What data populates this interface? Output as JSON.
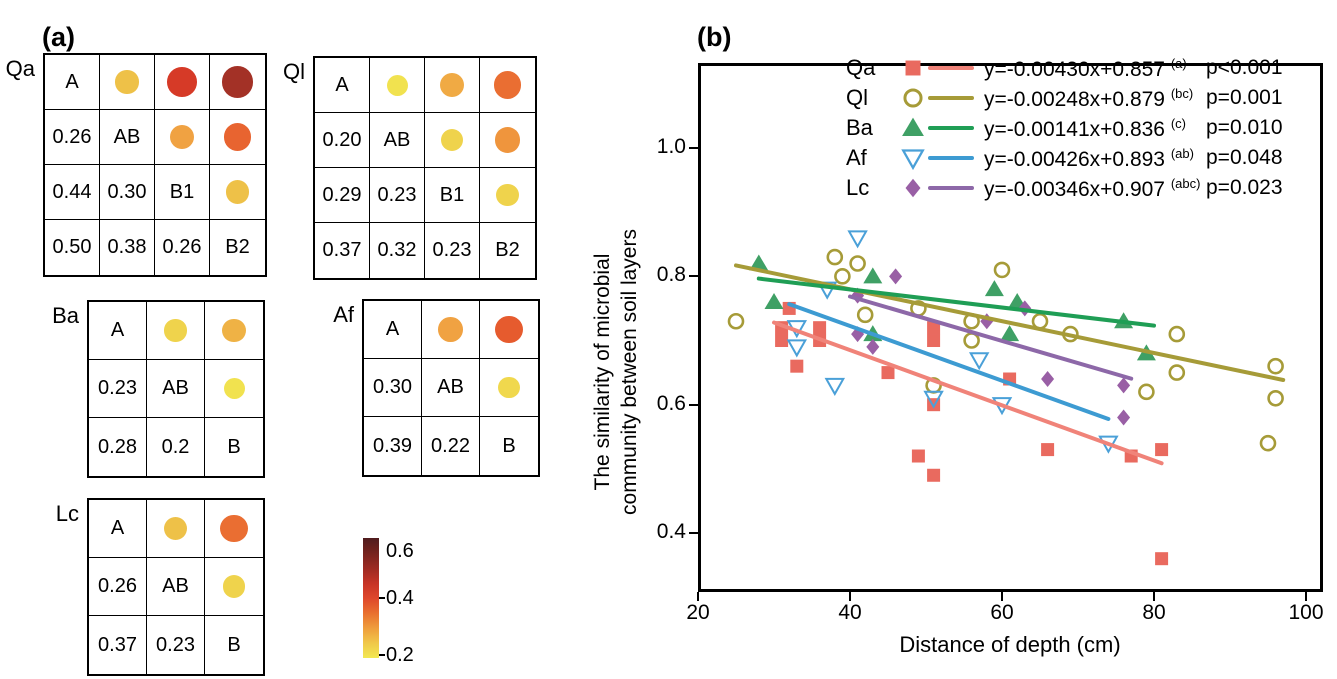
{
  "panel_a": {
    "title": "(a)",
    "matrices": [
      {
        "name": "Qa",
        "diagonal": [
          "A",
          "AB",
          "B1",
          "B2"
        ],
        "lower": [
          [
            "0.26"
          ],
          [
            "0.44",
            "0.30"
          ],
          [
            "0.50",
            "0.38",
            "0.26"
          ]
        ]
      },
      {
        "name": "Ql",
        "diagonal": [
          "A",
          "AB",
          "B1",
          "B2"
        ],
        "lower": [
          [
            "0.20"
          ],
          [
            "0.29",
            "0.23"
          ],
          [
            "0.37",
            "0.32",
            "0.23"
          ]
        ]
      },
      {
        "name": "Ba",
        "diagonal": [
          "A",
          "AB",
          "B"
        ],
        "lower": [
          [
            "0.23"
          ],
          [
            "0.28",
            "0.2"
          ]
        ]
      },
      {
        "name": "Af",
        "diagonal": [
          "A",
          "AB",
          "B"
        ],
        "lower": [
          [
            "0.30"
          ],
          [
            "0.39",
            "0.22"
          ]
        ]
      },
      {
        "name": "Lc",
        "diagonal": [
          "A",
          "AB",
          "B"
        ],
        "lower": [
          [
            "0.26"
          ],
          [
            "0.37",
            "0.23"
          ]
        ]
      }
    ],
    "colorbar": {
      "min": 0.2,
      "max": 0.6,
      "tick_labels": [
        "0.6",
        "0.4",
        "0.2"
      ]
    }
  },
  "panel_b": {
    "title": "(b)",
    "xlabel": "Distance of depth (cm)",
    "ylabel": [
      "The similarity of microbial",
      "community between soil layers"
    ]
  },
  "chart_data": {
    "type": "scatter",
    "xlabel": "Distance of depth (cm)",
    "ylabel": "The similarity of microbial community between soil layers",
    "xlim": [
      20,
      101.5
    ],
    "ylim": [
      0.31,
      1.13
    ],
    "xticks": [
      {
        "v": 20,
        "label": "20"
      },
      {
        "v": 40,
        "label": "40"
      },
      {
        "v": 60,
        "label": "60"
      },
      {
        "v": 80,
        "label": "80"
      },
      {
        "v": 100,
        "label": "100"
      }
    ],
    "yticks": [
      {
        "v": 1.0,
        "label": "1.0"
      },
      {
        "v": 0.8,
        "label": "0.8"
      },
      {
        "v": 0.6,
        "label": "0.6"
      },
      {
        "v": 0.4,
        "label": "0.4"
      }
    ],
    "legend_position": "top-center-inside",
    "grid": false,
    "series": [
      {
        "name": "Qa",
        "marker": "square-filled",
        "color": "#e96a5f",
        "line_color": "#f08379",
        "equation": "y=-0.00430x+0.857",
        "sig": "(a)",
        "p": "p<0.001",
        "slope": -0.0043,
        "intercept": 0.857,
        "line_x": [
          30,
          81
        ],
        "points": [
          [
            32,
            0.75
          ],
          [
            31,
            0.72
          ],
          [
            31,
            0.7
          ],
          [
            36,
            0.72
          ],
          [
            36,
            0.7
          ],
          [
            33,
            0.66
          ],
          [
            45,
            0.65
          ],
          [
            51,
            0.72
          ],
          [
            51,
            0.7
          ],
          [
            51,
            0.6
          ],
          [
            61,
            0.64
          ],
          [
            49,
            0.52
          ],
          [
            51,
            0.49
          ],
          [
            66,
            0.53
          ],
          [
            77,
            0.52
          ],
          [
            81,
            0.53
          ],
          [
            81,
            0.36
          ]
        ]
      },
      {
        "name": "Ql",
        "marker": "circle-open",
        "color": "#a69b38",
        "line_color": "#a69b38",
        "equation": "y=-0.00248x+0.879",
        "sig": "(bc)",
        "p": "p=0.001",
        "slope": -0.00248,
        "intercept": 0.879,
        "line_x": [
          25,
          97
        ],
        "points": [
          [
            25,
            0.73
          ],
          [
            38,
            0.83
          ],
          [
            41,
            0.82
          ],
          [
            39,
            0.8
          ],
          [
            42,
            0.74
          ],
          [
            49,
            0.75
          ],
          [
            60,
            0.81
          ],
          [
            56,
            0.73
          ],
          [
            56,
            0.7
          ],
          [
            65,
            0.73
          ],
          [
            69,
            0.71
          ],
          [
            51,
            0.63
          ],
          [
            79,
            0.62
          ],
          [
            83,
            0.71
          ],
          [
            83,
            0.65
          ],
          [
            96,
            0.66
          ],
          [
            96,
            0.61
          ],
          [
            95,
            0.54
          ]
        ]
      },
      {
        "name": "Ba",
        "marker": "triangle-up-filled",
        "color": "#3fa065",
        "line_color": "#1f9e55",
        "equation": "y=-0.00141x+0.836",
        "sig": "(c)",
        "p": "p=0.010",
        "slope": -0.00141,
        "intercept": 0.836,
        "line_x": [
          28,
          80
        ],
        "points": [
          [
            28,
            0.82
          ],
          [
            30,
            0.76
          ],
          [
            43,
            0.8
          ],
          [
            43,
            0.71
          ],
          [
            59,
            0.78
          ],
          [
            62,
            0.76
          ],
          [
            61,
            0.71
          ],
          [
            76,
            0.73
          ],
          [
            79,
            0.68
          ]
        ]
      },
      {
        "name": "Af",
        "marker": "triangle-down-open",
        "color": "#4aa0d8",
        "line_color": "#3d9bd2",
        "equation": "y=-0.00426x+0.893",
        "sig": "(ab)",
        "p": "p=0.048",
        "slope": -0.00426,
        "intercept": 0.893,
        "line_x": [
          32,
          74
        ],
        "points": [
          [
            41,
            0.86
          ],
          [
            37,
            0.78
          ],
          [
            33,
            0.72
          ],
          [
            33,
            0.69
          ],
          [
            38,
            0.63
          ],
          [
            57,
            0.67
          ],
          [
            51,
            0.61
          ],
          [
            60,
            0.6
          ],
          [
            74,
            0.54
          ]
        ]
      },
      {
        "name": "Lc",
        "marker": "diamond-filled",
        "color": "#995fa5",
        "line_color": "#8d68a8",
        "equation": "y=-0.00346x+0.907",
        "sig": "(abc)",
        "p": "p=0.023",
        "slope": -0.00346,
        "intercept": 0.907,
        "line_x": [
          40,
          77
        ],
        "points": [
          [
            46,
            0.8
          ],
          [
            41,
            0.77
          ],
          [
            41,
            0.71
          ],
          [
            43,
            0.69
          ],
          [
            58,
            0.73
          ],
          [
            63,
            0.75
          ],
          [
            66,
            0.64
          ],
          [
            76,
            0.63
          ],
          [
            76,
            0.58
          ]
        ]
      }
    ]
  }
}
